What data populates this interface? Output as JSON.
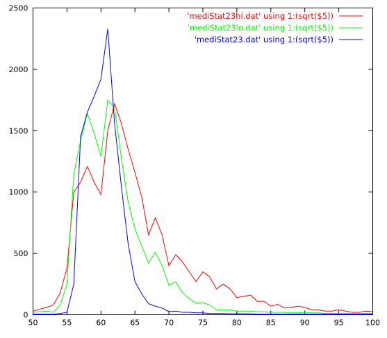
{
  "chart_data": {
    "type": "line",
    "title": "",
    "xlabel": "",
    "ylabel": "",
    "xlim": [
      50,
      100
    ],
    "ylim": [
      0,
      2500
    ],
    "x_ticks": [
      50,
      55,
      60,
      65,
      70,
      75,
      80,
      85,
      90,
      95,
      100
    ],
    "y_ticks": [
      0,
      500,
      1000,
      1500,
      2000,
      2500
    ],
    "grid": false,
    "legend_position": "top-right",
    "series": [
      {
        "name": "'mediStat23hi.dat' using 1:(sqrt($5))",
        "color": "#ff0000",
        "points": [
          [
            50,
            30
          ],
          [
            51,
            45
          ],
          [
            52,
            60
          ],
          [
            53,
            80
          ],
          [
            54,
            180
          ],
          [
            55,
            380
          ],
          [
            56,
            1000
          ],
          [
            57,
            1080
          ],
          [
            58,
            1210
          ],
          [
            59,
            1080
          ],
          [
            60,
            980
          ],
          [
            61,
            1500
          ],
          [
            62,
            1720
          ],
          [
            63,
            1560
          ],
          [
            64,
            1350
          ],
          [
            65,
            1160
          ],
          [
            66,
            960
          ],
          [
            67,
            650
          ],
          [
            68,
            790
          ],
          [
            69,
            650
          ],
          [
            70,
            400
          ],
          [
            71,
            490
          ],
          [
            72,
            430
          ],
          [
            73,
            350
          ],
          [
            74,
            270
          ],
          [
            75,
            350
          ],
          [
            76,
            310
          ],
          [
            77,
            210
          ],
          [
            78,
            250
          ],
          [
            79,
            210
          ],
          [
            80,
            140
          ],
          [
            81,
            150
          ],
          [
            82,
            160
          ],
          [
            83,
            110
          ],
          [
            84,
            110
          ],
          [
            85,
            70
          ],
          [
            86,
            85
          ],
          [
            87,
            55
          ],
          [
            88,
            60
          ],
          [
            89,
            70
          ],
          [
            90,
            60
          ],
          [
            91,
            40
          ],
          [
            92,
            40
          ],
          [
            93,
            30
          ],
          [
            94,
            30
          ],
          [
            95,
            40
          ],
          [
            96,
            30
          ],
          [
            97,
            20
          ],
          [
            98,
            20
          ],
          [
            99,
            30
          ],
          [
            100,
            25
          ]
        ]
      },
      {
        "name": "'mediStat23lo.dat' using 1:(sqrt($5))",
        "color": "#00ff00",
        "points": [
          [
            50,
            20
          ],
          [
            51,
            25
          ],
          [
            52,
            30
          ],
          [
            53,
            20
          ],
          [
            54,
            80
          ],
          [
            55,
            250
          ],
          [
            56,
            1150
          ],
          [
            57,
            1420
          ],
          [
            58,
            1640
          ],
          [
            59,
            1480
          ],
          [
            60,
            1290
          ],
          [
            61,
            1750
          ],
          [
            62,
            1690
          ],
          [
            63,
            1280
          ],
          [
            64,
            920
          ],
          [
            65,
            700
          ],
          [
            66,
            560
          ],
          [
            67,
            420
          ],
          [
            68,
            510
          ],
          [
            69,
            400
          ],
          [
            70,
            240
          ],
          [
            71,
            270
          ],
          [
            72,
            180
          ],
          [
            73,
            130
          ],
          [
            74,
            95
          ],
          [
            75,
            100
          ],
          [
            76,
            80
          ],
          [
            77,
            40
          ],
          [
            78,
            40
          ],
          [
            79,
            40
          ],
          [
            80,
            30
          ],
          [
            81,
            30
          ],
          [
            82,
            30
          ],
          [
            83,
            25
          ],
          [
            84,
            25
          ],
          [
            85,
            20
          ],
          [
            86,
            20
          ],
          [
            87,
            20
          ],
          [
            88,
            15
          ],
          [
            89,
            15
          ],
          [
            90,
            20
          ],
          [
            91,
            15
          ],
          [
            92,
            15
          ],
          [
            93,
            10
          ],
          [
            94,
            10
          ],
          [
            95,
            10
          ],
          [
            96,
            10
          ],
          [
            97,
            10
          ],
          [
            98,
            10
          ],
          [
            99,
            10
          ],
          [
            100,
            10
          ]
        ]
      },
      {
        "name": "'mediStat23.dat' using 1:(sqrt($5))",
        "color": "#0000ff",
        "points": [
          [
            50,
            5
          ],
          [
            51,
            5
          ],
          [
            52,
            5
          ],
          [
            53,
            5
          ],
          [
            54,
            10
          ],
          [
            55,
            20
          ],
          [
            56,
            250
          ],
          [
            57,
            1450
          ],
          [
            58,
            1650
          ],
          [
            59,
            1780
          ],
          [
            60,
            1920
          ],
          [
            61,
            2330
          ],
          [
            62,
            1560
          ],
          [
            63,
            1050
          ],
          [
            64,
            580
          ],
          [
            65,
            270
          ],
          [
            66,
            170
          ],
          [
            67,
            90
          ],
          [
            68,
            70
          ],
          [
            69,
            55
          ],
          [
            70,
            25
          ],
          [
            71,
            30
          ],
          [
            72,
            20
          ],
          [
            73,
            20
          ],
          [
            74,
            15
          ],
          [
            75,
            15
          ],
          [
            76,
            10
          ],
          [
            77,
            10
          ],
          [
            78,
            10
          ],
          [
            79,
            8
          ],
          [
            80,
            8
          ],
          [
            81,
            8
          ],
          [
            82,
            8
          ],
          [
            83,
            5
          ],
          [
            84,
            5
          ],
          [
            85,
            5
          ],
          [
            86,
            5
          ],
          [
            87,
            5
          ],
          [
            88,
            5
          ],
          [
            89,
            5
          ],
          [
            90,
            5
          ],
          [
            91,
            5
          ],
          [
            92,
            5
          ],
          [
            93,
            5
          ],
          [
            94,
            5
          ],
          [
            95,
            5
          ],
          [
            96,
            5
          ],
          [
            97,
            5
          ],
          [
            98,
            5
          ],
          [
            99,
            5
          ],
          [
            100,
            5
          ]
        ]
      }
    ]
  }
}
